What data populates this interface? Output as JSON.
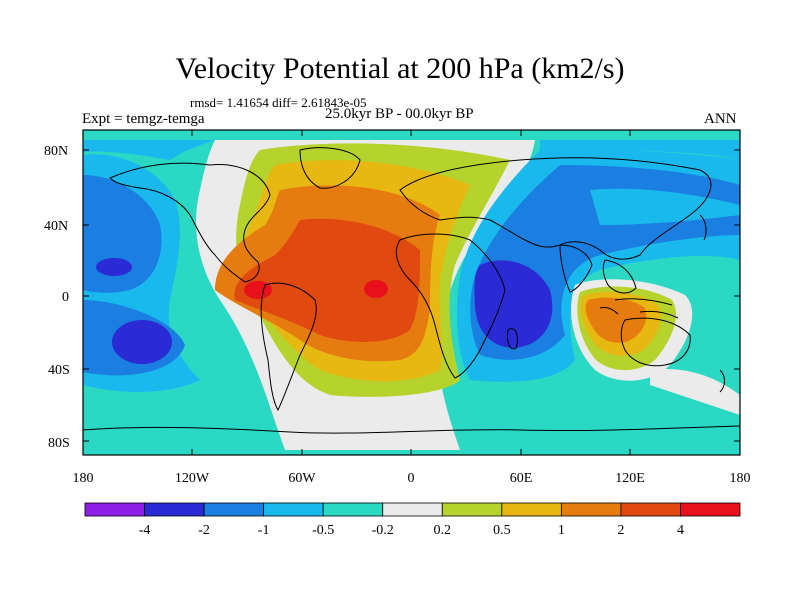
{
  "title": "Velocity Potential at 200 hPa (km2/s)",
  "stats": "rmsd= 1.41654 diff= 2.61843e-05",
  "experiment": "Expt = temgz-temga",
  "period": "25.0kyr BP - 00.0kyr BP",
  "season": "ANN",
  "lat_labels": [
    "80N",
    "40N",
    "0",
    "40S",
    "80S"
  ],
  "lon_labels": [
    "180",
    "120W",
    "60W",
    "0",
    "60E",
    "120E",
    "180"
  ],
  "colorbar": {
    "levels": [
      "-4",
      "-2",
      "-1",
      "-0.5",
      "-0.2",
      "0.2",
      "0.5",
      "1",
      "2",
      "4"
    ],
    "colors": [
      "#8e1ee6",
      "#2b2bd6",
      "#1a7fe0",
      "#19b9ee",
      "#2ad8c4",
      "#ebebeb",
      "#b6d32d",
      "#e8b812",
      "#e67c0f",
      "#e04a10",
      "#e8101a"
    ]
  }
}
